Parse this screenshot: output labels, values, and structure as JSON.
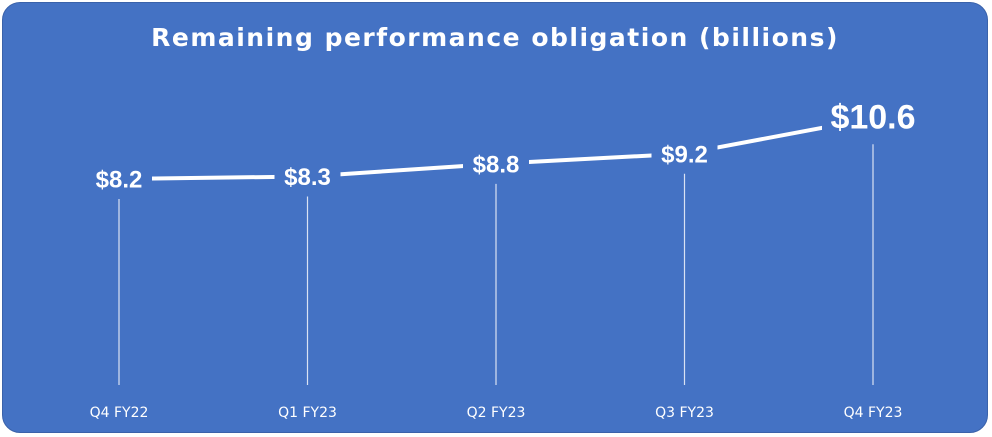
{
  "chart_data": {
    "type": "line",
    "title": "Remaining performance obligation (billions)",
    "categories": [
      "Q4 FY22",
      "Q1 FY23",
      "Q2 FY23",
      "Q3 FY23",
      "Q4 FY23"
    ],
    "series": [
      {
        "values": [
          8.2,
          8.3,
          8.8,
          9.2,
          10.6
        ]
      }
    ],
    "data_labels": [
      "$8.2",
      "$8.3",
      "$8.8",
      "$9.2",
      "$10.6"
    ],
    "xlabel": "",
    "ylabel": "",
    "grid": false,
    "legend": "none",
    "colors": {
      "background": "#4472C4",
      "line": "#FFFFFF",
      "text": "#FFFFFF"
    }
  }
}
